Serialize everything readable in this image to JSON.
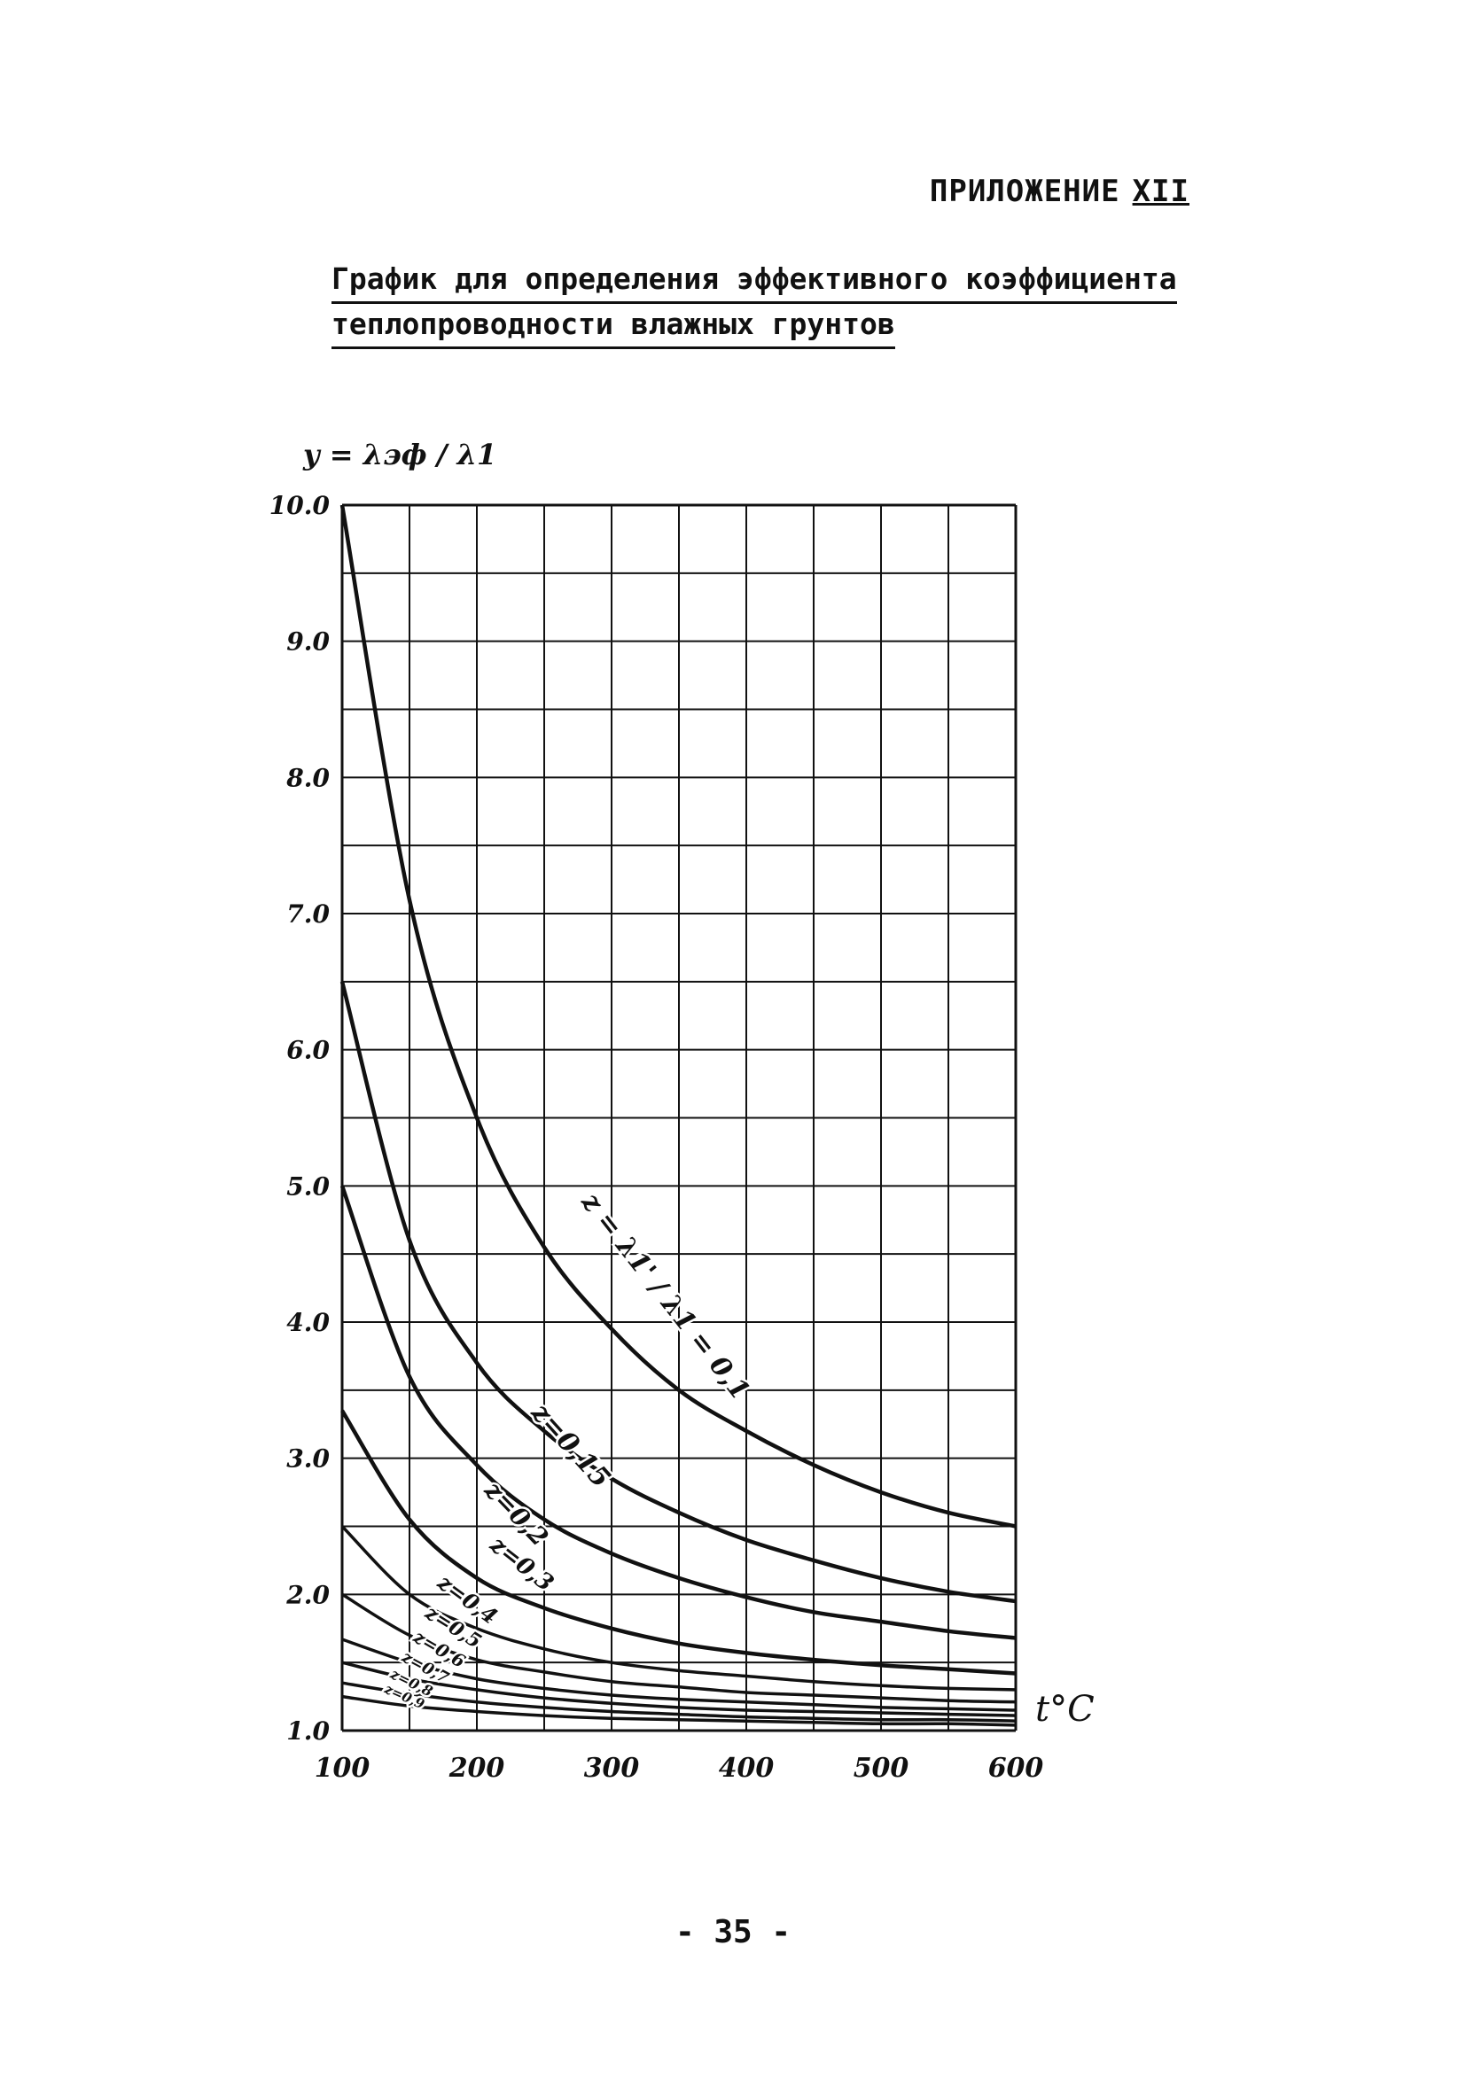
{
  "header": {
    "appendix_label": "ПРИЛОЖЕНИЕ",
    "appendix_number": "XII",
    "title_line1": "График для определения эффективного коэффициента",
    "title_line2": "теплопроводности влажных грунтов"
  },
  "page_number": "- 35 -",
  "chart_data": {
    "type": "line",
    "ylabel": "y = λэф / λ1",
    "xlabel": "t°C",
    "xlim": [
      100,
      600
    ],
    "ylim": [
      1.0,
      10.0
    ],
    "x_ticks": [
      "100",
      "200",
      "300",
      "400",
      "500",
      "600"
    ],
    "y_ticks": [
      "1.0",
      "2.0",
      "3.0",
      "4.0",
      "5.0",
      "6.0",
      "7.0",
      "8.0",
      "9.0",
      "10.0"
    ],
    "grid": true,
    "x": [
      100,
      150,
      200,
      250,
      300,
      350,
      400,
      450,
      500,
      550,
      600
    ],
    "series": [
      {
        "name": "z = λ1' / λ1 = 0,1",
        "values": [
          10.0,
          7.1,
          5.5,
          4.55,
          3.95,
          3.5,
          3.2,
          2.95,
          2.75,
          2.6,
          2.5
        ]
      },
      {
        "name": "z=0,15",
        "values": [
          6.5,
          4.6,
          3.7,
          3.2,
          2.85,
          2.6,
          2.4,
          2.25,
          2.12,
          2.02,
          1.95
        ]
      },
      {
        "name": "z=0,2",
        "values": [
          5.0,
          3.6,
          2.95,
          2.55,
          2.3,
          2.12,
          1.98,
          1.87,
          1.8,
          1.73,
          1.68
        ]
      },
      {
        "name": "z=0,3",
        "values": [
          3.35,
          2.55,
          2.12,
          1.9,
          1.75,
          1.64,
          1.57,
          1.52,
          1.48,
          1.45,
          1.42
        ]
      },
      {
        "name": "z=0,4",
        "values": [
          2.5,
          2.0,
          1.75,
          1.6,
          1.5,
          1.44,
          1.4,
          1.36,
          1.33,
          1.31,
          1.3
        ]
      },
      {
        "name": "z=0,5",
        "values": [
          2.0,
          1.7,
          1.52,
          1.43,
          1.36,
          1.32,
          1.28,
          1.26,
          1.24,
          1.22,
          1.21
        ]
      },
      {
        "name": "z=0,6",
        "values": [
          1.67,
          1.5,
          1.38,
          1.31,
          1.26,
          1.23,
          1.21,
          1.19,
          1.17,
          1.16,
          1.15
        ]
      },
      {
        "name": "z=0,7",
        "values": [
          1.5,
          1.38,
          1.3,
          1.24,
          1.2,
          1.17,
          1.15,
          1.14,
          1.13,
          1.12,
          1.11
        ]
      },
      {
        "name": "z=0,8",
        "values": [
          1.35,
          1.27,
          1.21,
          1.17,
          1.14,
          1.12,
          1.1,
          1.09,
          1.08,
          1.08,
          1.07
        ]
      },
      {
        "name": "z=0,9",
        "values": [
          1.25,
          1.18,
          1.14,
          1.11,
          1.09,
          1.08,
          1.07,
          1.06,
          1.05,
          1.05,
          1.04
        ]
      }
    ]
  }
}
